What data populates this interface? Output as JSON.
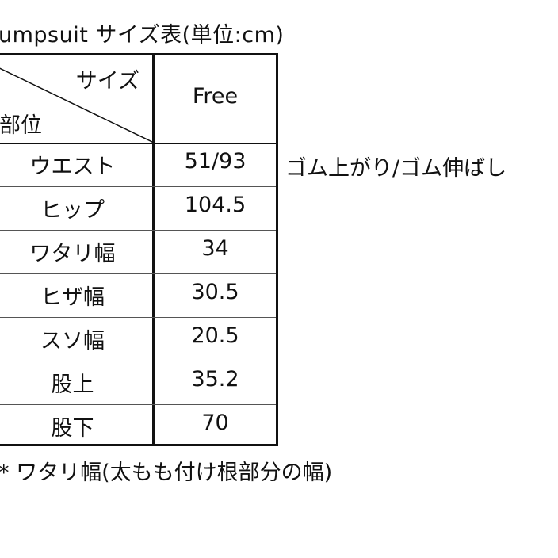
{
  "title": "umpsuit サイズ表(単位:cm)",
  "table": {
    "header_size": "サイズ",
    "header_part": "部位",
    "header_col": "Free",
    "rows": [
      {
        "part": "ウエスト",
        "value": "51/93"
      },
      {
        "part": "ヒップ",
        "value": "104.5"
      },
      {
        "part": "ワタリ幅",
        "value": "34"
      },
      {
        "part": "ヒザ幅",
        "value": "30.5"
      },
      {
        "part": "スソ幅",
        "value": "20.5"
      },
      {
        "part": "股上",
        "value": "35.2"
      },
      {
        "part": "股下",
        "value": "70"
      }
    ]
  },
  "waist_note": "ゴム上がり/ゴム伸ばし",
  "footnote": "* ワタリ幅(太もも付け根部分の幅)"
}
